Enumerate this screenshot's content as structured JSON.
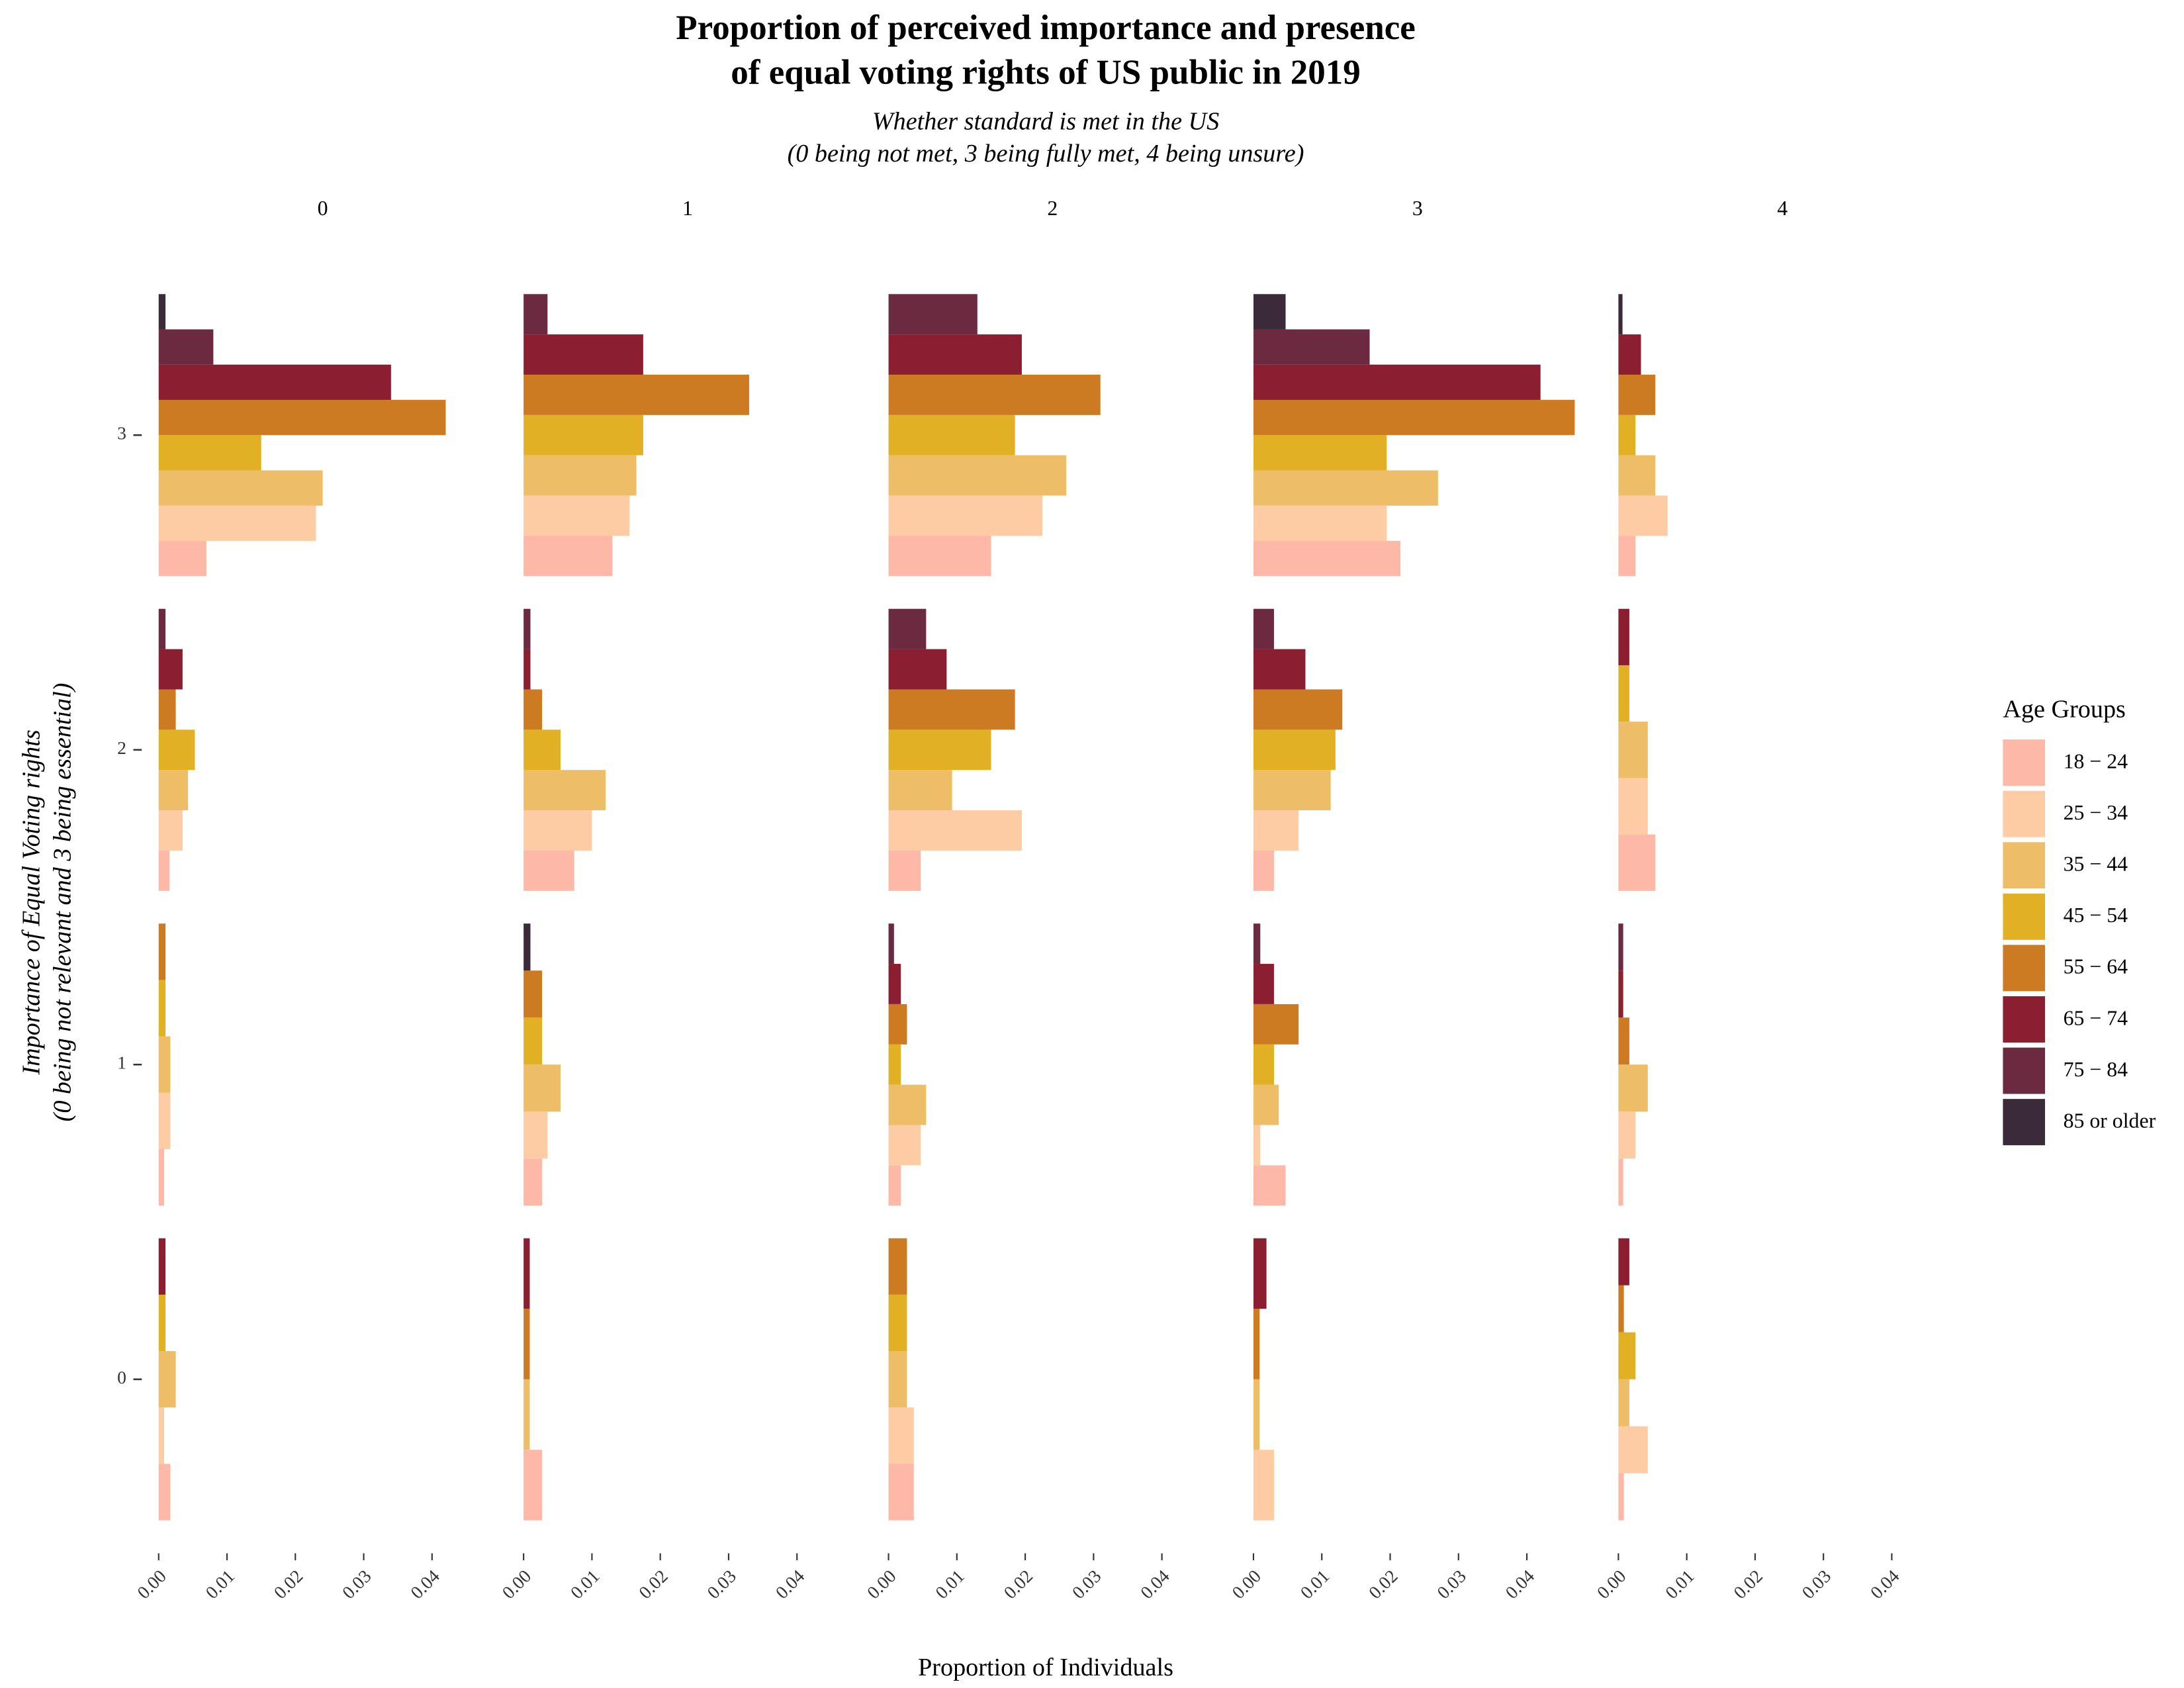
{
  "chart_data": {
    "type": "bar",
    "orientation": "horizontal",
    "title": [
      "Proportion of perceived importance and presence",
      "of equal voting rights of US public in 2019"
    ],
    "subtitle": [
      "Whether standard is met in the US",
      "(0 being not met, 3 being fully met, 4 being unsure)"
    ],
    "x_label": "Proportion of Individuals",
    "y_label": [
      "Importance of Equal Voting rights",
      "(0 being not relevant and 3 being essential)"
    ],
    "facet_columns": [
      "0",
      "1",
      "2",
      "3",
      "4"
    ],
    "categories": [
      "0",
      "1",
      "2",
      "3"
    ],
    "xlim": [
      -0.002,
      0.05
    ],
    "xticks": [
      {
        "value": 0,
        "label": "0.00"
      },
      {
        "value": 0.01,
        "label": "0.01"
      },
      {
        "value": 0.02,
        "label": "0.02"
      },
      {
        "value": 0.03,
        "label": "0.03"
      },
      {
        "value": 0.04,
        "label": "0.04"
      }
    ],
    "legend_title": "Age Groups",
    "legend_position": "right",
    "series": [
      {
        "name": "18 − 24",
        "color": "#fdb8a8",
        "values": [
          [
            0.0017,
            0.0008,
            0.0016,
            0.007
          ],
          [
            0.0027,
            0.0027,
            0.0074,
            0.013
          ],
          [
            0.0037,
            0.0018,
            0.0047,
            0.015
          ],
          [
            null,
            0.0047,
            0.003,
            0.0215
          ],
          [
            0.0008,
            0.0007,
            0.0054,
            0.0025
          ]
        ]
      },
      {
        "name": "25 − 34",
        "color": "#fdcba4",
        "values": [
          [
            0.0008,
            0.0017,
            0.0035,
            0.023
          ],
          [
            null,
            0.0035,
            0.01,
            0.0155
          ],
          [
            0.0037,
            0.0047,
            0.0195,
            0.0225
          ],
          [
            0.003,
            0.001,
            0.0066,
            0.0195
          ],
          [
            0.0043,
            0.0025,
            0.0043,
            0.0072
          ]
        ]
      },
      {
        "name": "35 − 44",
        "color": "#edbd67",
        "values": [
          [
            0.0025,
            0.0017,
            0.0043,
            0.024
          ],
          [
            0.0009,
            0.0054,
            0.012,
            0.0165
          ],
          [
            0.0027,
            0.0055,
            0.0093,
            0.026
          ],
          [
            0.0009,
            0.0037,
            0.0113,
            0.027
          ],
          [
            0.0016,
            0.0043,
            0.0043,
            0.0054
          ]
        ]
      },
      {
        "name": "45 − 54",
        "color": "#e1b024",
        "values": [
          [
            0.001,
            0.001,
            0.0053,
            0.015
          ],
          [
            null,
            0.0027,
            0.0054,
            0.0175
          ],
          [
            0.0027,
            0.0018,
            0.015,
            0.0185
          ],
          [
            null,
            0.003,
            0.012,
            0.0195
          ],
          [
            0.0025,
            null,
            0.0016,
            0.0025
          ]
        ]
      },
      {
        "name": "55 − 64",
        "color": "#cc7b22",
        "values": [
          [
            null,
            0.001,
            0.0025,
            0.042
          ],
          [
            0.0009,
            0.0027,
            0.0027,
            0.033
          ],
          [
            0.0027,
            0.0027,
            0.0185,
            0.031
          ],
          [
            0.0009,
            0.0066,
            0.013,
            0.047
          ],
          [
            0.0008,
            0.0016,
            null,
            0.0054
          ]
        ]
      },
      {
        "name": "65 − 74",
        "color": "#8b1e30",
        "values": [
          [
            0.001,
            null,
            0.0035,
            0.034
          ],
          [
            0.0009,
            null,
            0.001,
            0.0175
          ],
          [
            null,
            0.0018,
            0.0085,
            0.0195
          ],
          [
            0.0019,
            0.003,
            0.0076,
            0.042
          ],
          [
            0.0016,
            0.0007,
            0.0016,
            0.0033
          ]
        ]
      },
      {
        "name": "75 − 84",
        "color": "#6b2a40",
        "values": [
          [
            null,
            null,
            0.001,
            0.008
          ],
          [
            null,
            null,
            0.001,
            0.0035
          ],
          [
            null,
            0.0008,
            0.0055,
            0.013
          ],
          [
            null,
            0.001,
            0.003,
            0.017
          ],
          [
            null,
            0.0007,
            null,
            null
          ]
        ]
      },
      {
        "name": "85 or older",
        "color": "#3a2a3a",
        "values": [
          [
            null,
            null,
            null,
            0.001
          ],
          [
            null,
            0.001,
            null,
            null
          ],
          [
            null,
            null,
            null,
            null
          ],
          [
            null,
            null,
            null,
            0.0047
          ],
          [
            null,
            null,
            null,
            0.0006
          ]
        ]
      }
    ]
  }
}
